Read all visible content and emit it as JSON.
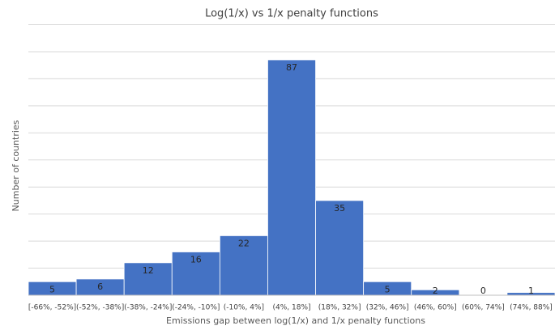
{
  "chart_data": {
    "type": "bar",
    "title": "Log(1/x) vs 1/x penalty functions",
    "x_label": "Emissions gap between log(1/x) and 1/x penalty functions",
    "y_label": "Number of countries",
    "categories": [
      "[-66%, -52%]",
      "(-52%, -38%]",
      "(-38%, -24%]",
      "(-24%, -10%]",
      "(-10%, 4%]",
      "(4%, 18%]",
      "(18%, 32%]",
      "(32%, 46%]",
      "(46%, 60%]",
      "(60%, 74%]",
      "(74%, 88%]"
    ],
    "values": [
      5,
      6,
      12,
      16,
      22,
      87,
      35,
      5,
      2,
      0,
      1
    ],
    "color": "#4472c4",
    "ylim": [
      0,
      100
    ],
    "yticks": [
      0,
      10,
      20,
      30,
      40,
      50,
      60,
      70,
      80,
      90,
      100
    ],
    "grid": true
  }
}
